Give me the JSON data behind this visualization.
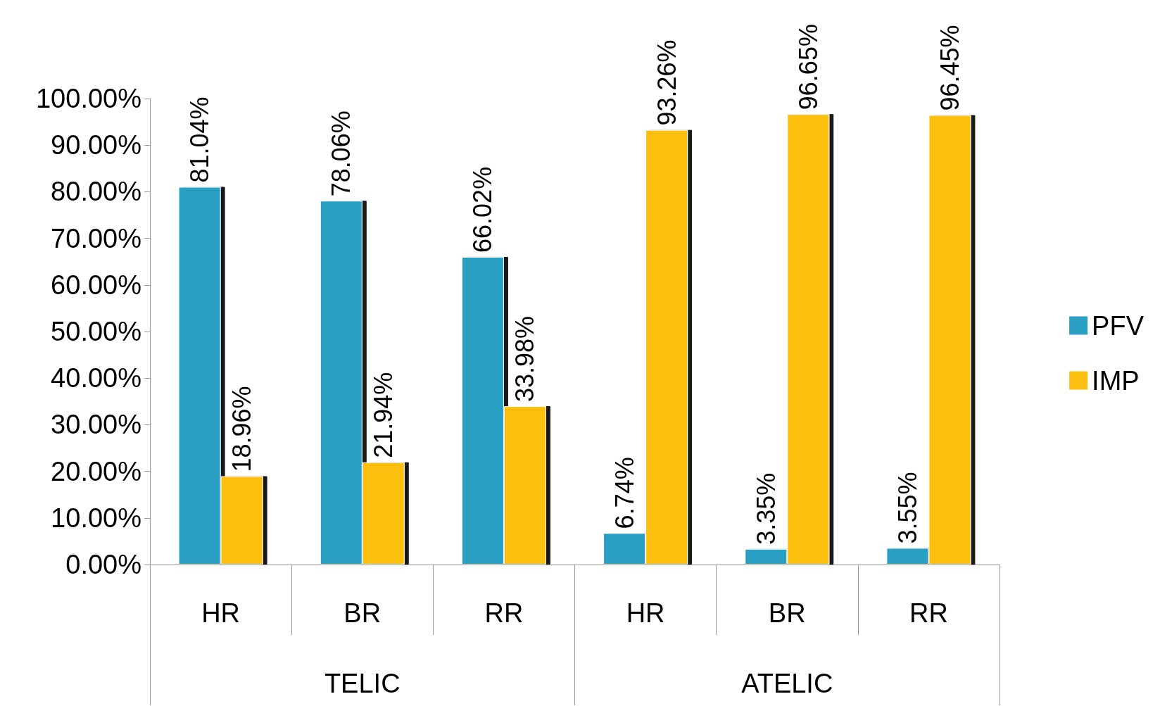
{
  "chart_data": {
    "type": "bar",
    "categories": [
      "HR",
      "BR",
      "RR",
      "HR",
      "BR",
      "RR"
    ],
    "annotations": [
      "TELIC",
      "ATELIC"
    ],
    "series": [
      {
        "name": "PFV",
        "color": "#2b9fc4",
        "values": [
          81.04,
          78.06,
          66.02,
          6.74,
          3.35,
          3.55
        ],
        "value_labels": [
          "81.04%",
          "78.06%",
          "66.02%",
          "6.74%",
          "3.35%",
          "3.55%"
        ]
      },
      {
        "name": "IMP",
        "color": "#fcbf10",
        "values": [
          18.96,
          21.94,
          33.98,
          93.26,
          96.65,
          96.45
        ],
        "value_labels": [
          "18.96%",
          "21.94%",
          "33.98%",
          "93.26%",
          "96.65%",
          "96.45%"
        ]
      }
    ],
    "ylim": [
      0,
      100
    ],
    "yticks": [
      {
        "value": 0,
        "label": "0.00%"
      },
      {
        "value": 10,
        "label": "10.00%"
      },
      {
        "value": 20,
        "label": "20.00%"
      },
      {
        "value": 30,
        "label": "30.00%"
      },
      {
        "value": 40,
        "label": "40.00%"
      },
      {
        "value": 50,
        "label": "50.00%"
      },
      {
        "value": 60,
        "label": "60.00%"
      },
      {
        "value": 70,
        "label": "70.00%"
      },
      {
        "value": 80,
        "label": "80.00%"
      },
      {
        "value": 90,
        "label": "90.00%"
      },
      {
        "value": 100,
        "label": "100.00%"
      }
    ],
    "legend": "right",
    "grid": false
  }
}
